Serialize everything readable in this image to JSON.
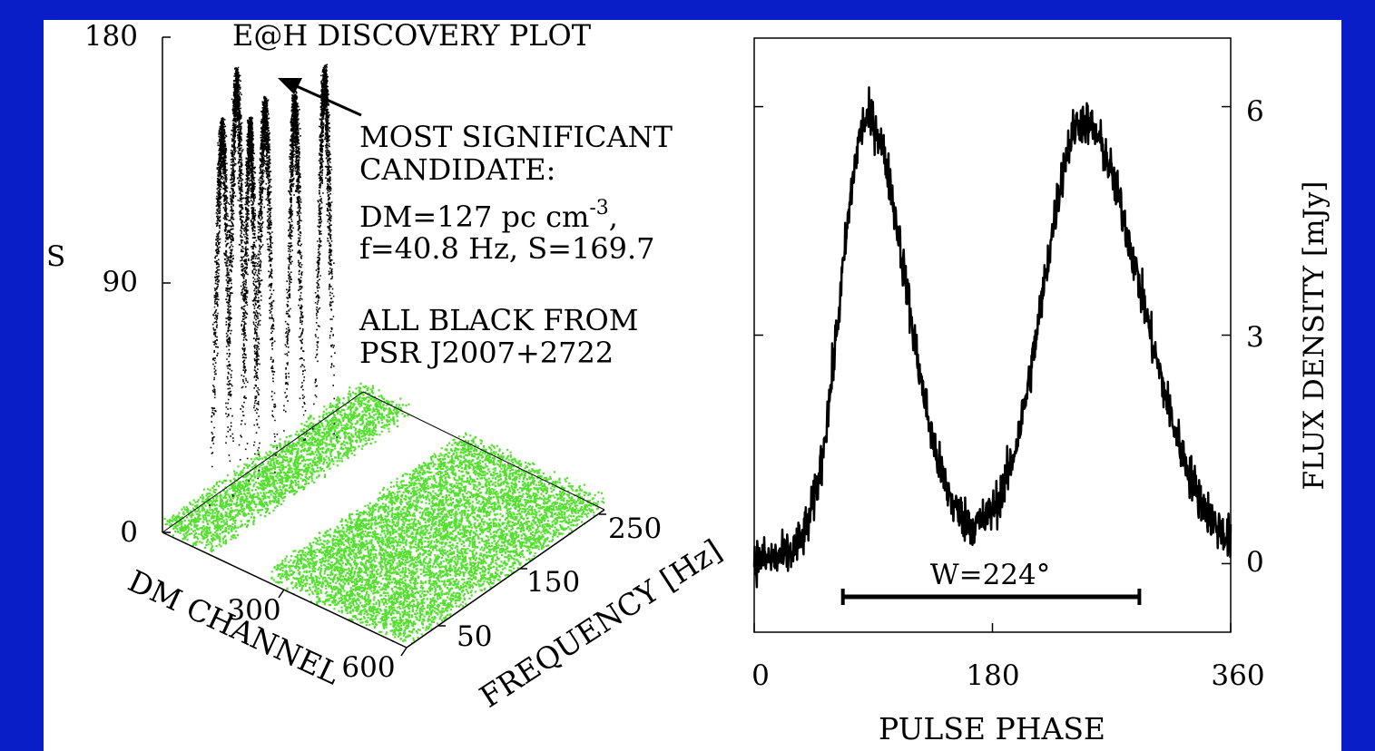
{
  "chart_data": [
    {
      "type": "scatter",
      "title": "E@H DISCOVERY PLOT",
      "xlabel": "DM CHANNEL",
      "ylabel": "FREQUENCY [Hz]",
      "zlabel": "S",
      "dm_ticks": [
        "300",
        "600"
      ],
      "freq_ticks": [
        "50",
        "150",
        "250"
      ],
      "s_ticks": [
        "0",
        "90",
        "180"
      ],
      "dm_range": [
        0,
        700
      ],
      "freq_range": [
        0,
        275
      ],
      "s_range": [
        0,
        180
      ],
      "annotation_lines": [
        "MOST SIGNIFICANT",
        "CANDIDATE:",
        "DM=127 pc cm",
        "f=40.8 Hz, S=169.7",
        "ALL BLACK FROM",
        "PSR J2007+2722"
      ],
      "annotation_superscript": "-3",
      "annotation_comma": ",",
      "series": [
        {
          "color": "#000000",
          "peaks_s": [
            169.7,
            155,
            148,
            152,
            146,
            148
          ]
        },
        {
          "color": "#55e030"
        }
      ]
    },
    {
      "type": "line",
      "xlabel": "PULSE PHASE",
      "ylabel": "FLUX DENSITY [mJy]",
      "xticks": [
        "0",
        "180",
        "360"
      ],
      "yticks": [
        "0",
        "3",
        "6"
      ],
      "xlim": [
        0,
        360
      ],
      "ylim": [
        -0.9,
        6.9
      ],
      "width_label": "W=224°",
      "width_bar": [
        67,
        291
      ],
      "peaks": [
        {
          "phase": 85,
          "flux": 6.0
        },
        {
          "phase": 248,
          "flux": 6.1
        }
      ],
      "minimum": {
        "phase": 178,
        "flux": 0.5
      },
      "series": [
        {
          "color": "#000000"
        }
      ]
    }
  ]
}
